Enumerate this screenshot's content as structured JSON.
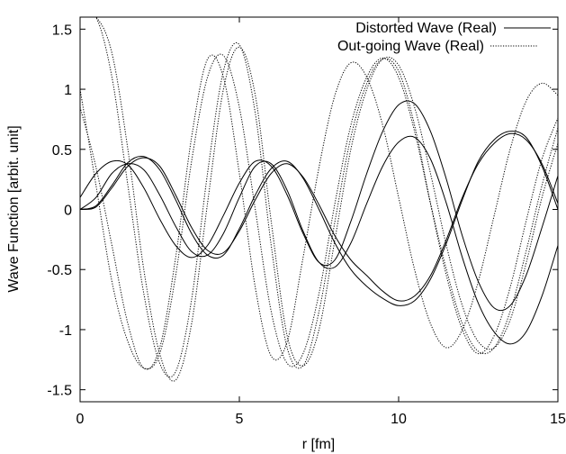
{
  "chart_data": {
    "type": "line",
    "title": "",
    "xlabel": "r [fm]",
    "ylabel": "Wave Function [arbit. unit]",
    "xlim": [
      0,
      15
    ],
    "ylim": [
      -1.6,
      1.6
    ],
    "xticks": [
      0,
      5,
      10,
      15
    ],
    "xtick_labels": [
      "0",
      "5",
      "10",
      "15"
    ],
    "yticks": [
      -1.5,
      -1,
      -0.5,
      0,
      0.5,
      1,
      1.5
    ],
    "ytick_labels": [
      "-1.5",
      "-1",
      "-0.5",
      "0",
      "0.5",
      "1",
      "1.5"
    ],
    "grid": false,
    "legend_position": "top-right",
    "legend": [
      {
        "label": "Distorted Wave (Real)",
        "style": "solid"
      },
      {
        "label": "Out-going Wave (Real)",
        "style": "dotted"
      }
    ],
    "series": [
      {
        "style": "solid",
        "x": [
          0,
          0.5,
          1,
          1.5,
          2,
          2.5,
          3,
          3.5,
          4,
          4.5,
          5,
          5.5,
          6,
          6.5,
          7,
          7.5,
          8,
          8.5,
          9,
          9.5,
          10,
          10.5,
          11,
          11.5,
          12,
          12.5,
          13,
          13.5,
          14,
          14.5,
          15
        ],
        "y": [
          0,
          0.02,
          0.18,
          0.36,
          0.43,
          0.36,
          0.12,
          -0.15,
          -0.34,
          -0.36,
          -0.18,
          0.08,
          0.3,
          0.38,
          0.27,
          0.04,
          -0.22,
          -0.42,
          -0.55,
          -0.68,
          -0.76,
          -0.72,
          -0.55,
          -0.25,
          0.1,
          0.38,
          0.55,
          0.63,
          0.58,
          0.38,
          0.05
        ]
      },
      {
        "style": "solid",
        "x": [
          0,
          0.5,
          1,
          1.5,
          2,
          2.5,
          3,
          3.5,
          4,
          4.5,
          5,
          5.5,
          6,
          6.5,
          7,
          7.5,
          8,
          8.5,
          9,
          9.5,
          10,
          10.5,
          11,
          11.5,
          12,
          12.5,
          13,
          13.5,
          14,
          14.5,
          15
        ],
        "y": [
          0,
          0.03,
          0.2,
          0.39,
          0.44,
          0.33,
          0.08,
          -0.2,
          -0.38,
          -0.38,
          -0.16,
          0.12,
          0.34,
          0.4,
          0.26,
          0.0,
          -0.28,
          -0.5,
          -0.64,
          -0.74,
          -0.8,
          -0.76,
          -0.58,
          -0.28,
          0.08,
          0.4,
          0.58,
          0.65,
          0.6,
          0.36,
          0.0
        ]
      },
      {
        "style": "solid",
        "x": [
          0,
          0.5,
          1,
          1.5,
          2,
          2.5,
          3,
          3.5,
          4,
          4.5,
          5,
          5.5,
          6,
          6.5,
          7,
          7.5,
          8,
          8.5,
          9,
          9.5,
          10,
          10.5,
          11,
          11.5,
          12,
          12.5,
          13,
          13.5,
          14,
          14.5,
          15
        ],
        "y": [
          0.1,
          0.3,
          0.4,
          0.37,
          0.18,
          -0.08,
          -0.3,
          -0.4,
          -0.3,
          -0.05,
          0.22,
          0.4,
          0.36,
          0.12,
          -0.2,
          -0.44,
          -0.42,
          -0.1,
          0.3,
          0.65,
          0.87,
          0.88,
          0.65,
          0.25,
          -0.22,
          -0.6,
          -0.82,
          -0.8,
          -0.55,
          -0.15,
          0.28
        ]
      },
      {
        "style": "solid",
        "x": [
          0,
          0.5,
          1,
          1.5,
          2,
          2.5,
          3,
          3.5,
          4,
          4.5,
          5,
          5.5,
          6,
          6.5,
          7,
          7.5,
          8,
          8.5,
          9,
          9.5,
          10,
          10.5,
          11,
          11.5,
          12,
          12.5,
          13,
          13.5,
          14,
          14.5,
          15
        ],
        "y": [
          0,
          0.1,
          0.3,
          0.38,
          0.33,
          0.12,
          -0.14,
          -0.35,
          -0.38,
          -0.2,
          0.1,
          0.36,
          0.38,
          0.16,
          -0.18,
          -0.44,
          -0.48,
          -0.28,
          0.05,
          0.36,
          0.56,
          0.6,
          0.42,
          0.05,
          -0.4,
          -0.78,
          -1.02,
          -1.12,
          -1.02,
          -0.72,
          -0.3
        ]
      },
      {
        "style": "dotted",
        "x": [
          0,
          0.5,
          1,
          1.5,
          2,
          2.5,
          3,
          3.5,
          4,
          4.5,
          5,
          5.5,
          6,
          6.5,
          7,
          7.5,
          8,
          8.5,
          9,
          9.5,
          10,
          10.5,
          11,
          11.5,
          12,
          12.5,
          13,
          13.5,
          14,
          14.5,
          15
        ],
        "y": [
          1.0,
          0.2,
          -0.6,
          -1.1,
          -1.32,
          -1.2,
          -0.55,
          0.4,
          1.1,
          1.28,
          0.85,
          0.0,
          -0.85,
          -1.28,
          -1.2,
          -0.7,
          0.05,
          0.7,
          1.1,
          1.26,
          1.1,
          0.65,
          0.05,
          -0.5,
          -0.95,
          -1.18,
          -1.15,
          -0.85,
          -0.35,
          0.2,
          0.68
        ]
      },
      {
        "style": "dotted",
        "x": [
          0,
          0.5,
          1,
          1.5,
          2,
          2.5,
          3,
          3.5,
          4,
          4.5,
          5,
          5.5,
          6,
          6.5,
          7,
          7.5,
          8,
          8.5,
          9,
          9.5,
          10,
          10.5,
          11,
          11.5,
          12,
          12.5,
          13,
          13.5,
          14,
          14.5,
          15
        ],
        "y": [
          1.6,
          1.6,
          1.1,
          0.2,
          -0.7,
          -1.28,
          -1.35,
          -0.75,
          0.3,
          1.15,
          1.37,
          0.8,
          -0.3,
          -1.15,
          -1.3,
          -0.85,
          -0.1,
          0.6,
          1.05,
          1.25,
          1.15,
          0.7,
          0.05,
          -0.55,
          -1.0,
          -1.2,
          -1.05,
          -0.65,
          -0.1,
          0.42,
          0.76
        ]
      },
      {
        "style": "dotted",
        "x": [
          0,
          0.5,
          1,
          1.5,
          2,
          2.5,
          3,
          3.5,
          4,
          4.5,
          5,
          5.5,
          6,
          6.5,
          7,
          7.5,
          8,
          8.5,
          9,
          9.5,
          10,
          10.5,
          11,
          11.5,
          12,
          12.5,
          13,
          13.5,
          14,
          14.5,
          15
        ],
        "y": [
          1.6,
          1.6,
          1.3,
          0.5,
          -0.5,
          -1.2,
          -1.42,
          -0.95,
          0.05,
          1.0,
          1.35,
          0.95,
          -0.1,
          -1.05,
          -1.3,
          -1.0,
          -0.25,
          0.5,
          1.0,
          1.25,
          1.2,
          0.85,
          0.3,
          -0.3,
          -0.8,
          -1.1,
          -1.15,
          -0.92,
          -0.45,
          0.1,
          0.55
        ]
      },
      {
        "style": "dotted",
        "x": [
          0,
          0.5,
          1,
          1.5,
          2,
          2.5,
          3,
          3.5,
          4,
          4.5,
          5,
          5.5,
          6,
          6.5,
          7,
          7.5,
          8,
          8.5,
          9,
          9.5,
          10,
          10.5,
          11,
          11.5,
          12,
          12.5,
          13,
          13.5,
          14,
          14.5,
          15
        ],
        "y": [
          0.85,
          0.35,
          -0.3,
          -0.95,
          -1.32,
          -1.15,
          -0.4,
          0.6,
          1.25,
          1.1,
          0.3,
          -0.65,
          -1.22,
          -1.1,
          -0.4,
          0.35,
          0.95,
          1.22,
          1.1,
          0.7,
          0.1,
          -0.5,
          -0.95,
          -1.15,
          -1.0,
          -0.6,
          -0.05,
          0.5,
          0.9,
          1.05,
          0.95
        ]
      }
    ]
  }
}
